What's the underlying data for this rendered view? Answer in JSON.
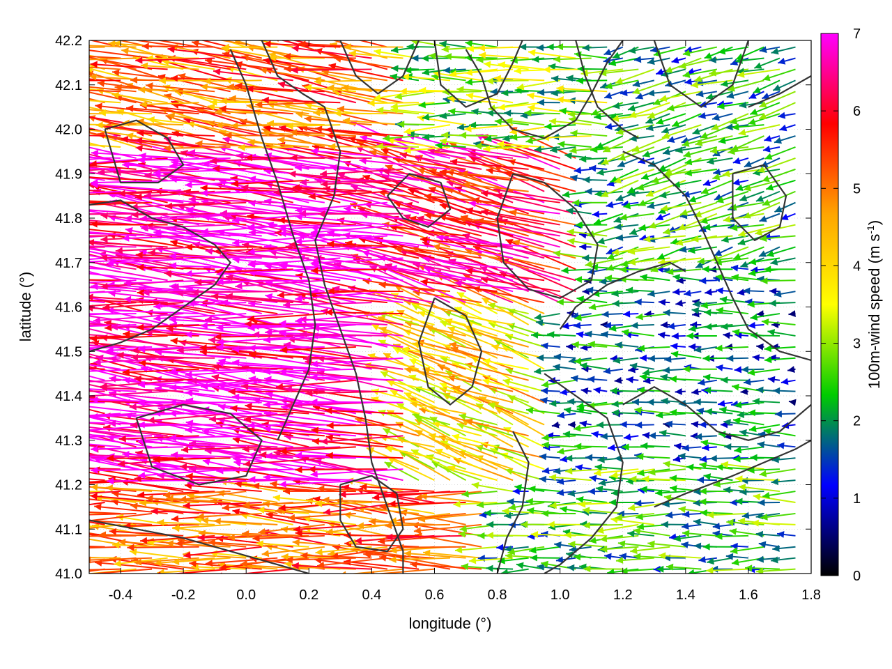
{
  "chart_data": {
    "type": "quiver",
    "xlabel": "longitude (°)",
    "ylabel": "latitude (°)",
    "colorbar_label_prefix": "100m-wind speed (m s",
    "colorbar_label_exp": "-1",
    "colorbar_label_suffix": ")",
    "xlim": [
      -0.5,
      1.8
    ],
    "ylim": [
      41.0,
      42.2
    ],
    "x_ticks": [
      -0.4,
      -0.2,
      0.0,
      0.2,
      0.4,
      0.6,
      0.8,
      1.0,
      1.2,
      1.4,
      1.6,
      1.8
    ],
    "x_tick_labels": [
      "-0.4",
      "-0.2",
      "0.0",
      "0.2",
      "0.4",
      "0.6",
      "0.8",
      "1.0",
      "1.2",
      "1.4",
      "1.6",
      "1.8"
    ],
    "y_ticks": [
      41.0,
      41.1,
      41.2,
      41.3,
      41.4,
      41.5,
      41.6,
      41.7,
      41.8,
      41.9,
      42.0,
      42.1,
      42.2
    ],
    "y_tick_labels": [
      "41.0",
      "41.1",
      "41.2",
      "41.3",
      "41.4",
      "41.5",
      "41.6",
      "41.7",
      "41.8",
      "41.9",
      "42.0",
      "42.1",
      "42.2"
    ],
    "colorbar": {
      "min": 0,
      "max": 7,
      "ticks": [
        0,
        1,
        2,
        3,
        4,
        5,
        6,
        7
      ],
      "tick_labels": [
        "0",
        "1",
        "2",
        "3",
        "4",
        "5",
        "6",
        "7"
      ],
      "stops": [
        "#000000",
        "#0000ff",
        "#00cc00",
        "#ffff00",
        "#ffa500",
        "#ff0000",
        "#ff00ff"
      ]
    },
    "grid": true,
    "contour_color": "#333333",
    "contours": [
      [
        [
          -0.5,
          41.83
        ],
        [
          -0.4,
          41.84
        ],
        [
          -0.3,
          41.8
        ],
        [
          -0.2,
          41.78
        ],
        [
          -0.1,
          41.74
        ],
        [
          -0.05,
          41.7
        ],
        [
          -0.1,
          41.65
        ],
        [
          -0.2,
          41.6
        ],
        [
          -0.3,
          41.55
        ],
        [
          -0.4,
          41.52
        ],
        [
          -0.5,
          41.5
        ]
      ],
      [
        [
          -0.35,
          41.35
        ],
        [
          -0.2,
          41.38
        ],
        [
          -0.05,
          41.36
        ],
        [
          0.05,
          41.3
        ],
        [
          0.0,
          41.22
        ],
        [
          -0.15,
          41.2
        ],
        [
          -0.3,
          41.24
        ],
        [
          -0.35,
          41.35
        ]
      ],
      [
        [
          -0.5,
          41.12
        ],
        [
          -0.35,
          41.1
        ],
        [
          -0.2,
          41.08
        ],
        [
          -0.05,
          41.05
        ],
        [
          0.1,
          41.02
        ],
        [
          0.2,
          41.0
        ]
      ],
      [
        [
          -0.05,
          42.18
        ],
        [
          0.0,
          42.1
        ],
        [
          0.05,
          41.98
        ],
        [
          0.1,
          41.88
        ],
        [
          0.15,
          41.76
        ],
        [
          0.2,
          41.66
        ],
        [
          0.22,
          41.56
        ],
        [
          0.2,
          41.46
        ],
        [
          0.15,
          41.38
        ],
        [
          0.1,
          41.3
        ]
      ],
      [
        [
          0.05,
          42.2
        ],
        [
          0.1,
          42.12
        ],
        [
          0.18,
          42.08
        ],
        [
          0.25,
          42.05
        ],
        [
          0.3,
          41.95
        ],
        [
          0.28,
          41.85
        ],
        [
          0.22,
          41.75
        ],
        [
          0.25,
          41.65
        ],
        [
          0.3,
          41.55
        ],
        [
          0.35,
          41.45
        ],
        [
          0.38,
          41.35
        ],
        [
          0.4,
          41.25
        ],
        [
          0.45,
          41.15
        ],
        [
          0.5,
          41.05
        ],
        [
          0.5,
          41.0
        ]
      ],
      [
        [
          0.3,
          42.2
        ],
        [
          0.35,
          42.12
        ],
        [
          0.42,
          42.08
        ],
        [
          0.5,
          42.12
        ],
        [
          0.55,
          42.2
        ]
      ],
      [
        [
          0.6,
          42.2
        ],
        [
          0.62,
          42.1
        ],
        [
          0.7,
          42.05
        ],
        [
          0.8,
          42.08
        ],
        [
          0.85,
          42.15
        ],
        [
          0.88,
          42.2
        ]
      ],
      [
        [
          0.7,
          42.18
        ],
        [
          0.75,
          42.12
        ],
        [
          0.78,
          42.05
        ],
        [
          0.85,
          42.0
        ],
        [
          0.95,
          41.98
        ],
        [
          1.05,
          42.02
        ],
        [
          1.1,
          42.08
        ],
        [
          1.15,
          42.15
        ],
        [
          1.2,
          42.2
        ]
      ],
      [
        [
          0.85,
          41.9
        ],
        [
          0.95,
          41.88
        ],
        [
          1.05,
          41.82
        ],
        [
          1.12,
          41.74
        ],
        [
          1.1,
          41.66
        ],
        [
          1.0,
          41.62
        ],
        [
          0.9,
          41.64
        ],
        [
          0.82,
          41.7
        ],
        [
          0.8,
          41.8
        ],
        [
          0.85,
          41.9
        ]
      ],
      [
        [
          0.6,
          41.62
        ],
        [
          0.7,
          41.58
        ],
        [
          0.75,
          41.5
        ],
        [
          0.72,
          41.42
        ],
        [
          0.65,
          41.38
        ],
        [
          0.58,
          41.42
        ],
        [
          0.55,
          41.52
        ],
        [
          0.6,
          41.62
        ]
      ],
      [
        [
          0.95,
          41.45
        ],
        [
          1.05,
          41.4
        ],
        [
          1.15,
          41.35
        ],
        [
          1.2,
          41.25
        ],
        [
          1.18,
          41.15
        ],
        [
          1.1,
          41.08
        ],
        [
          1.0,
          41.02
        ],
        [
          0.95,
          41.0
        ]
      ],
      [
        [
          0.85,
          41.32
        ],
        [
          0.9,
          41.25
        ],
        [
          0.88,
          41.15
        ],
        [
          0.83,
          41.08
        ],
        [
          0.8,
          41.0
        ]
      ],
      [
        [
          1.2,
          41.38
        ],
        [
          1.3,
          41.42
        ],
        [
          1.4,
          41.38
        ],
        [
          1.5,
          41.32
        ],
        [
          1.6,
          41.3
        ],
        [
          1.7,
          41.32
        ],
        [
          1.8,
          41.38
        ]
      ],
      [
        [
          1.3,
          42.2
        ],
        [
          1.35,
          42.1
        ],
        [
          1.45,
          42.05
        ],
        [
          1.55,
          42.1
        ],
        [
          1.6,
          42.2
        ]
      ],
      [
        [
          1.2,
          41.95
        ],
        [
          1.3,
          41.92
        ],
        [
          1.4,
          41.85
        ],
        [
          1.45,
          41.78
        ],
        [
          1.5,
          41.7
        ],
        [
          1.55,
          41.62
        ],
        [
          1.6,
          41.55
        ],
        [
          1.7,
          41.5
        ],
        [
          1.8,
          41.48
        ]
      ],
      [
        [
          1.55,
          41.9
        ],
        [
          1.65,
          41.92
        ],
        [
          1.72,
          41.85
        ],
        [
          1.7,
          41.78
        ],
        [
          1.62,
          41.75
        ],
        [
          1.55,
          41.8
        ],
        [
          1.55,
          41.9
        ]
      ],
      [
        [
          1.6,
          42.05
        ],
        [
          1.7,
          42.08
        ],
        [
          1.8,
          42.12
        ]
      ],
      [
        [
          1.05,
          42.2
        ],
        [
          1.08,
          42.12
        ],
        [
          1.12,
          42.05
        ],
        [
          1.2,
          42.0
        ],
        [
          1.25,
          41.98
        ]
      ],
      [
        [
          0.45,
          41.85
        ],
        [
          0.5,
          41.8
        ],
        [
          0.58,
          41.78
        ],
        [
          0.65,
          41.82
        ],
        [
          0.62,
          41.88
        ],
        [
          0.52,
          41.9
        ],
        [
          0.45,
          41.85
        ]
      ],
      [
        [
          -0.45,
          42.0
        ],
        [
          -0.35,
          42.02
        ],
        [
          -0.25,
          41.98
        ],
        [
          -0.2,
          41.92
        ],
        [
          -0.28,
          41.88
        ],
        [
          -0.4,
          41.88
        ],
        [
          -0.45,
          42.0
        ]
      ],
      [
        [
          0.3,
          41.2
        ],
        [
          0.4,
          41.22
        ],
        [
          0.48,
          41.18
        ],
        [
          0.5,
          41.1
        ],
        [
          0.45,
          41.05
        ],
        [
          0.35,
          41.06
        ],
        [
          0.3,
          41.12
        ],
        [
          0.3,
          41.2
        ]
      ],
      [
        [
          1.3,
          41.15
        ],
        [
          1.4,
          41.18
        ],
        [
          1.55,
          41.22
        ],
        [
          1.65,
          41.25
        ],
        [
          1.75,
          41.28
        ],
        [
          1.8,
          41.3
        ]
      ],
      [
        [
          1.0,
          41.55
        ],
        [
          1.05,
          41.6
        ],
        [
          1.15,
          41.65
        ],
        [
          1.25,
          41.68
        ],
        [
          1.35,
          41.7
        ],
        [
          1.4,
          41.68
        ]
      ]
    ],
    "wind": {
      "grid_dx": 0.05,
      "grid_dy": 0.05,
      "regions": [
        {
          "xmin": -0.5,
          "xmax": 0.5,
          "ymin": 41.2,
          "ymax": 41.95,
          "speed": 6.8,
          "dir_deg": 175
        },
        {
          "xmin": 0.5,
          "xmax": 1.1,
          "ymin": 41.6,
          "ymax": 41.95,
          "speed": 6.0,
          "dir_deg": 165
        },
        {
          "xmin": -0.5,
          "xmax": 0.5,
          "ymin": 41.95,
          "ymax": 42.2,
          "speed": 5.0,
          "dir_deg": 172
        },
        {
          "xmin": 0.5,
          "xmax": 1.2,
          "ymin": 41.95,
          "ymax": 42.2,
          "speed": 2.8,
          "dir_deg": 180
        },
        {
          "xmin": 1.2,
          "xmax": 1.8,
          "ymin": 41.7,
          "ymax": 42.2,
          "speed": 2.2,
          "dir_deg": 195
        },
        {
          "xmin": 0.5,
          "xmax": 1.0,
          "ymin": 41.2,
          "ymax": 41.6,
          "speed": 4.0,
          "dir_deg": 160
        },
        {
          "xmin": 1.0,
          "xmax": 1.8,
          "ymin": 41.25,
          "ymax": 41.7,
          "speed": 1.6,
          "dir_deg": 180
        },
        {
          "xmin": 0.8,
          "xmax": 1.8,
          "ymin": 41.0,
          "ymax": 41.25,
          "speed": 2.3,
          "dir_deg": 180
        },
        {
          "xmin": -0.5,
          "xmax": 0.8,
          "ymin": 41.0,
          "ymax": 41.2,
          "speed": 5.0,
          "dir_deg": 178
        }
      ]
    }
  }
}
